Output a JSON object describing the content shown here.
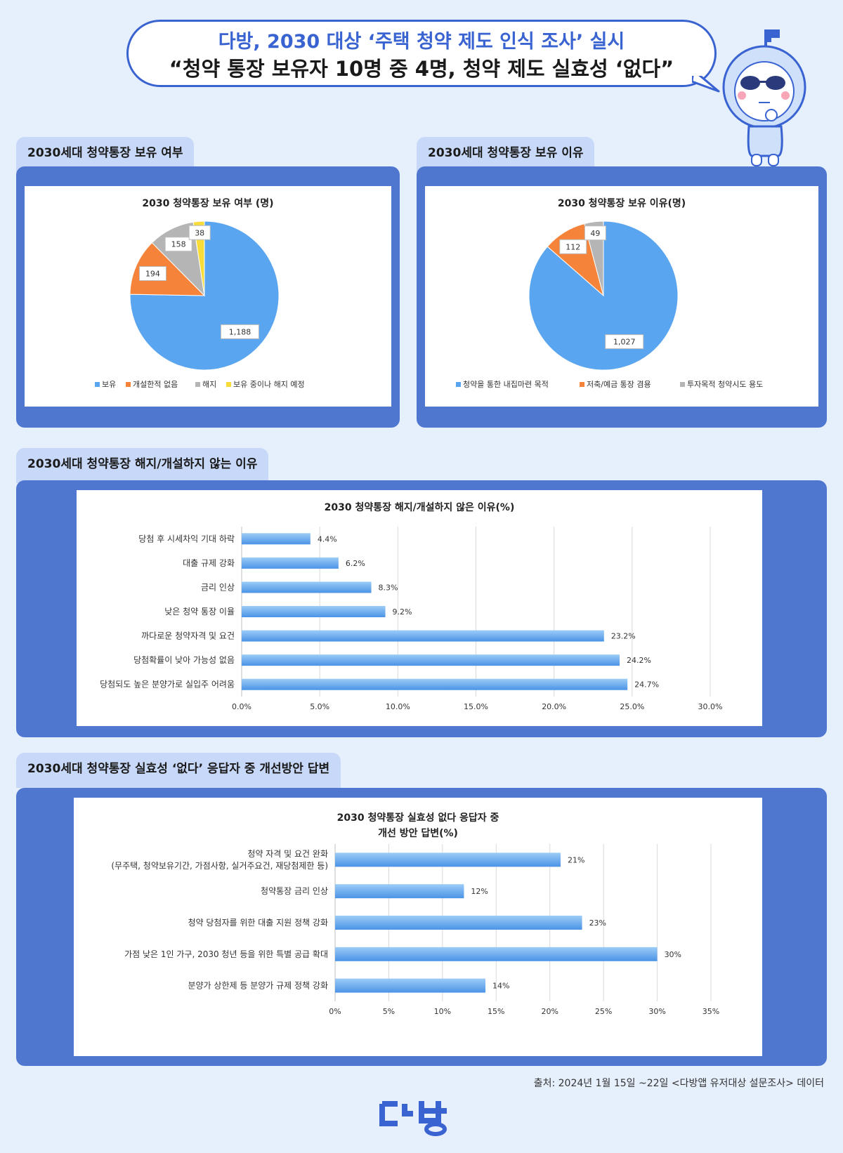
{
  "header": {
    "line1": "다방, 2030 대상 ‘주택 청약 제도 인식 조사’ 실시",
    "line2": "“청약 통장 보유자 10명 중 4명, 청약 제도 실효성 ‘없다”"
  },
  "sections": {
    "s1": "2030세대 청약통장 보유 여부",
    "s2": "2030세대 청약통장 보유 이유",
    "s3": "2030세대 청약통장 해지/개설하지 않는 이유",
    "s4": "2030세대 청약통장 실효성 ‘없다’ 응답자 중 개선방안 답변"
  },
  "chart_data": [
    {
      "type": "pie",
      "title": "2030 청약통장 보유 여부 (명)",
      "legend_position": "bottom",
      "slices": [
        {
          "label": "보유",
          "value": 1188,
          "display": "1,188",
          "color": "#5aa5f0"
        },
        {
          "label": "개설한적 없음",
          "value": 194,
          "display": "194",
          "color": "#f5843a"
        },
        {
          "label": "해지",
          "value": 158,
          "display": "158",
          "color": "#b5b5b5"
        },
        {
          "label": "보유 중이나 해지 예정",
          "value": 38,
          "display": "38",
          "color": "#f7dc3a"
        }
      ]
    },
    {
      "type": "pie",
      "title": "2030 청약통장 보유 이유(명)",
      "legend_position": "bottom",
      "slices": [
        {
          "label": "청약을 통한 내집마련 목적",
          "value": 1027,
          "display": "1,027",
          "color": "#5aa5f0"
        },
        {
          "label": "저축/예금 통장 겸용",
          "value": 112,
          "display": "112",
          "color": "#f5843a"
        },
        {
          "label": "투자목적 청약시도 용도",
          "value": 49,
          "display": "49",
          "color": "#b5b5b5"
        }
      ]
    },
    {
      "type": "bar",
      "orientation": "horizontal",
      "title": "2030 청약통장 해지/개설하지 않은 이유(%)",
      "xlim": [
        0,
        30
      ],
      "ticks": [
        0,
        5,
        10,
        15,
        20,
        25,
        30
      ],
      "tick_labels": [
        "0.0%",
        "5.0%",
        "10.0%",
        "15.0%",
        "20.0%",
        "25.0%",
        "30.0%"
      ],
      "grid": true,
      "categories": [
        "당첨 후 시세차익 기대 하락",
        "대출 규제 강화",
        "금리 인상",
        "낮은 청약 통장 이율",
        "까다로운 청약자격 및 요건",
        "당첨확률이 낮아 가능성 없음",
        "당첨되도 높은 분양가로 실입주 어려움"
      ],
      "values": [
        4.4,
        6.2,
        8.3,
        9.2,
        23.2,
        24.2,
        24.7
      ],
      "value_labels": [
        "4.4%",
        "6.2%",
        "8.3%",
        "9.2%",
        "23.2%",
        "24.2%",
        "24.7%"
      ],
      "color": "#5aa5f0"
    },
    {
      "type": "bar",
      "orientation": "horizontal",
      "title": "2030 청약통장 실효성 없다 응답자 중",
      "subtitle": "개선 방안 답변(%)",
      "xlim": [
        0,
        35
      ],
      "ticks": [
        0,
        5,
        10,
        15,
        20,
        25,
        30,
        35
      ],
      "tick_labels": [
        "0%",
        "5%",
        "10%",
        "15%",
        "20%",
        "25%",
        "30%",
        "35%"
      ],
      "grid": true,
      "categories": [
        [
          "청약 자격 및 요건 완화",
          "(무주택, 청약보유기간, 가점사항, 실거주요건, 재당첨제한 등)"
        ],
        [
          "청약통장 금리 인상"
        ],
        [
          "청약 당첨자를 위한 대출 지원 정책 강화"
        ],
        [
          "가점 낮은 1인 가구, 2030 청년 등을 위한 특별 공급 확대"
        ],
        [
          "분양가 상한제 등 분양가 규제 정책 강화"
        ]
      ],
      "values": [
        21,
        12,
        23,
        30,
        14
      ],
      "value_labels": [
        "21%",
        "12%",
        "23%",
        "30%",
        "14%"
      ],
      "color": "#5aa5f0"
    }
  ],
  "footer": {
    "source": "출처: 2024년 1월 15일 ~22일 <다방앱 유저대상 설문조사> 데이터",
    "logo": "다방"
  },
  "colors": {
    "background": "#e6effc",
    "panel": "#4f77cf",
    "tab": "#c8d8f8",
    "accent": "#3a63d2"
  }
}
